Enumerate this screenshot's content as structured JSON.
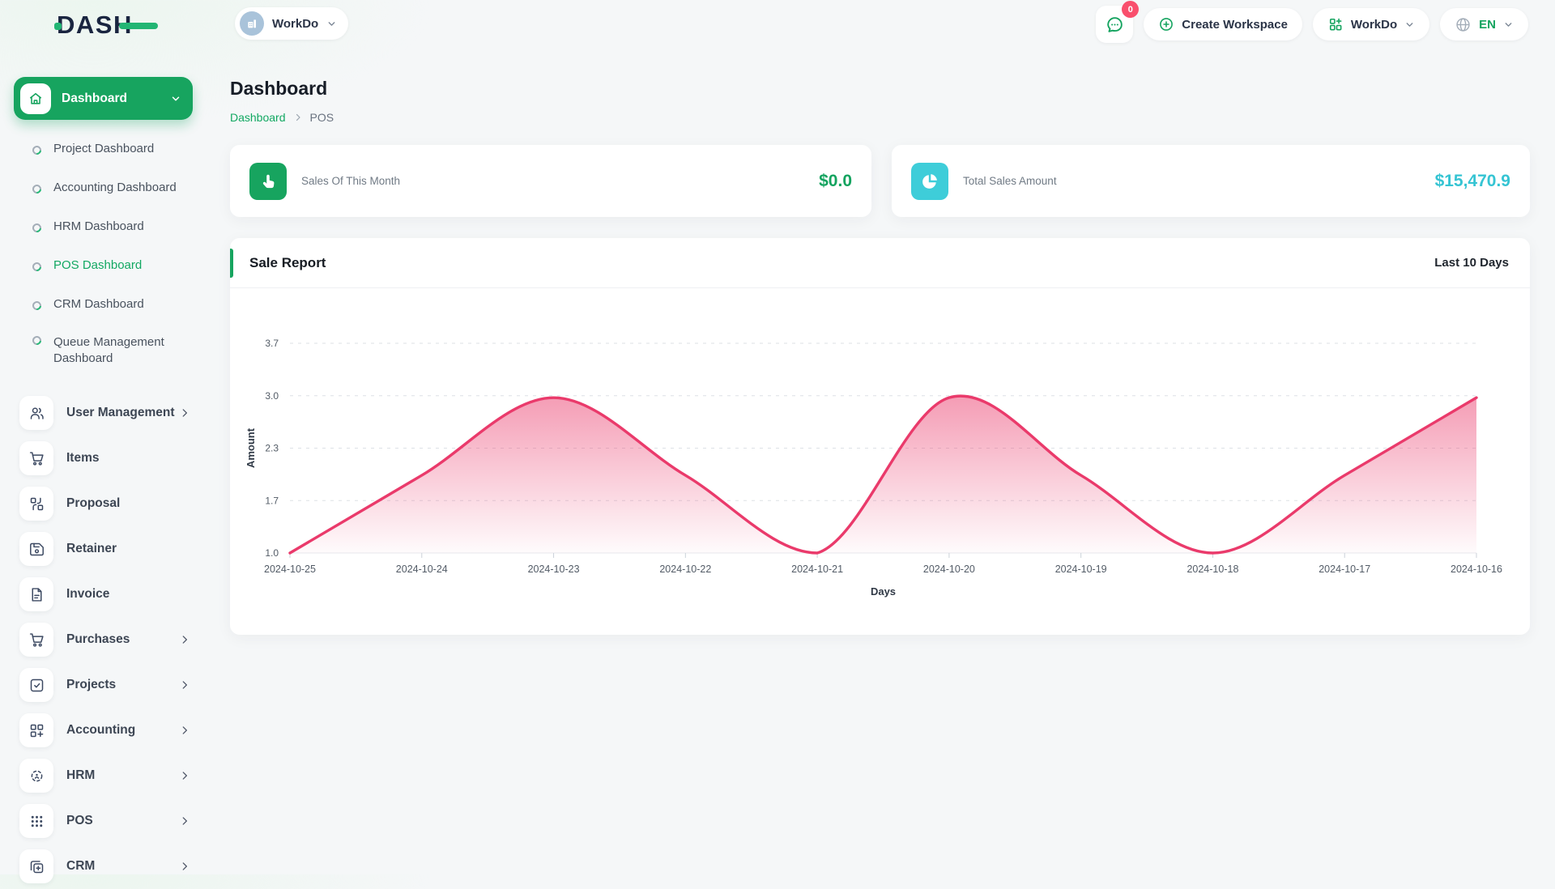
{
  "brand": {
    "logo_text": "DASH"
  },
  "header": {
    "workspace_switcher_label": "WorkDo",
    "messages_badge_count": "0",
    "create_workspace_label": "Create Workspace",
    "app_menu_label": "WorkDo",
    "language_code": "EN"
  },
  "sidebar": {
    "dashboard_group_label": "Dashboard",
    "dashboard_children": [
      {
        "label": "Project Dashboard",
        "active": false
      },
      {
        "label": "Accounting Dashboard",
        "active": false
      },
      {
        "label": "HRM Dashboard",
        "active": false
      },
      {
        "label": "POS Dashboard",
        "active": true
      },
      {
        "label": "CRM Dashboard",
        "active": false
      },
      {
        "label": "Queue Management Dashboard",
        "active": false
      }
    ],
    "sections": [
      {
        "label": "User Management",
        "icon": "users-icon",
        "has_submenu": true
      },
      {
        "label": "Items",
        "icon": "cart-icon",
        "has_submenu": false
      },
      {
        "label": "Proposal",
        "icon": "proposal-icon",
        "has_submenu": false
      },
      {
        "label": "Retainer",
        "icon": "retainer-icon",
        "has_submenu": false
      },
      {
        "label": "Invoice",
        "icon": "invoice-icon",
        "has_submenu": false
      },
      {
        "label": "Purchases",
        "icon": "cart-icon",
        "has_submenu": true
      },
      {
        "label": "Projects",
        "icon": "check-square-icon",
        "has_submenu": true
      },
      {
        "label": "Accounting",
        "icon": "grid-plus-icon",
        "has_submenu": true
      },
      {
        "label": "HRM",
        "icon": "focus-icon",
        "has_submenu": true
      },
      {
        "label": "POS",
        "icon": "dots-grid-icon",
        "has_submenu": true
      },
      {
        "label": "CRM",
        "icon": "frames-icon",
        "has_submenu": true
      }
    ]
  },
  "page": {
    "title": "Dashboard",
    "breadcrumb": {
      "root": "Dashboard",
      "current": "POS"
    }
  },
  "stats": [
    {
      "label": "Sales Of This Month",
      "value": "$0.0",
      "accent": "#17a45f",
      "icon": "tap-icon"
    },
    {
      "label": "Total Sales Amount",
      "value": "$15,470.9",
      "accent": "#3ecdd9",
      "icon": "pie-chart-icon"
    }
  ],
  "sale_report": {
    "title": "Sale Report",
    "range_label": "Last 10 Days"
  },
  "chart_data": {
    "type": "area",
    "title": "Sale Report",
    "x": [
      "2024-10-25",
      "2024-10-24",
      "2024-10-23",
      "2024-10-22",
      "2024-10-21",
      "2024-10-20",
      "2024-10-19",
      "2024-10-18",
      "2024-10-17",
      "2024-10-16"
    ],
    "values": [
      1,
      2,
      3,
      2,
      1,
      3,
      2,
      1,
      2,
      3
    ],
    "xlabel": "Days",
    "ylabel": "Amount",
    "ytick_labels": [
      "1.0",
      "1.7",
      "2.3",
      "3.0",
      "3.7"
    ],
    "ylim": [
      1.0,
      3.7
    ],
    "grid": "dashed-horizontal",
    "legend": "none",
    "line_color": "#ea3a6b",
    "fill_gradient_top": "rgba(234,58,107,0.50)",
    "fill_gradient_bottom": "rgba(234,58,107,0.02)"
  },
  "colors": {
    "primary_green": "#17a45f",
    "cyan_accent": "#3ecdd9",
    "badge_pink": "#f94f6d"
  }
}
